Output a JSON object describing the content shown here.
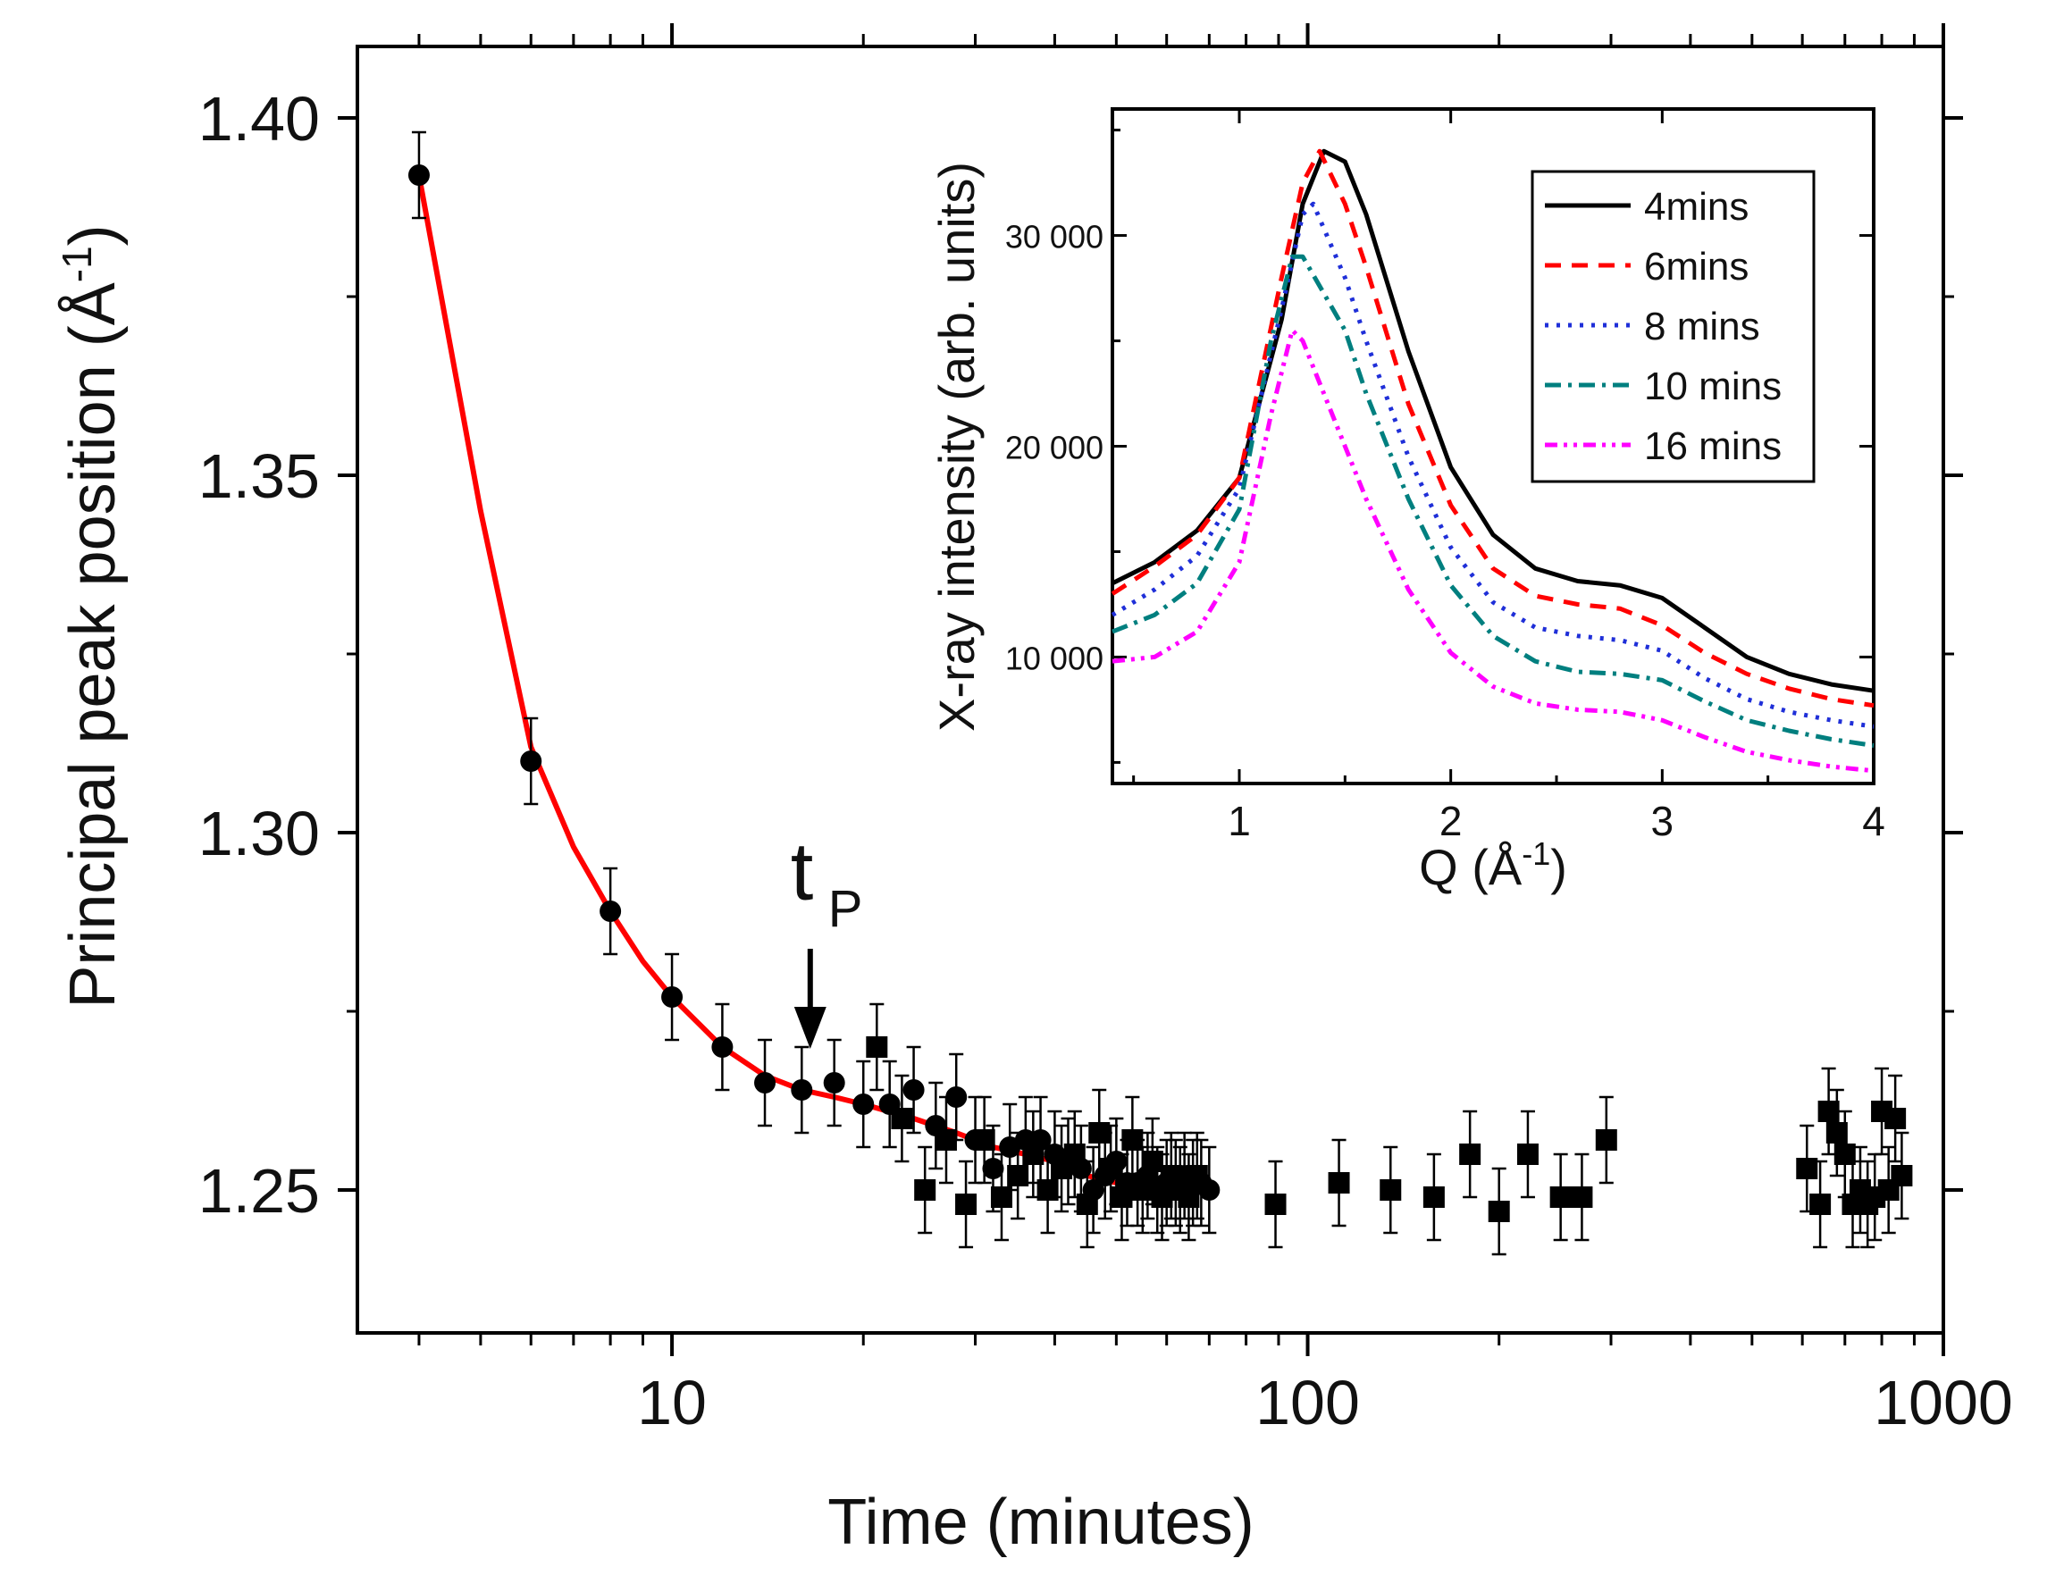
{
  "chart_data": [
    {
      "id": "main",
      "type": "scatter",
      "xscale": "log",
      "xlabel": "Time (minutes)",
      "ylabel": "Principal peak position (Å⁻¹)",
      "ylabel_base": "Principal peak position (Å",
      "ylabel_sup": "-1",
      "ylabel_close": ")",
      "xlim": [
        3.2,
        1000
      ],
      "ylim": [
        1.23,
        1.41
      ],
      "xticks": [
        10,
        100,
        1000
      ],
      "xtick_labels": [
        "10",
        "100",
        "1000"
      ],
      "yticks": [
        1.25,
        1.3,
        1.35,
        1.4
      ],
      "ytick_labels": [
        "1.25",
        "1.30",
        "1.35",
        "1.40"
      ],
      "error_bar": 0.006,
      "annotation": {
        "label": "t",
        "sub": "P",
        "x": 16.5,
        "y": 1.265
      },
      "series": [
        {
          "name": "circles",
          "marker": "circle",
          "points": [
            [
              4,
              1.392
            ],
            [
              6,
              1.31
            ],
            [
              8,
              1.289
            ],
            [
              10,
              1.277
            ],
            [
              12,
              1.27
            ],
            [
              14,
              1.265
            ],
            [
              16,
              1.264
            ],
            [
              18,
              1.265
            ],
            [
              20,
              1.262
            ],
            [
              22,
              1.262
            ],
            [
              24,
              1.264
            ],
            [
              26,
              1.259
            ],
            [
              28,
              1.263
            ],
            [
              30,
              1.257
            ],
            [
              32,
              1.253
            ],
            [
              34,
              1.256
            ],
            [
              36,
              1.257
            ],
            [
              38,
              1.257
            ],
            [
              40,
              1.255
            ],
            [
              42,
              1.254
            ],
            [
              44,
              1.253
            ],
            [
              46,
              1.25
            ],
            [
              48,
              1.252
            ],
            [
              50,
              1.254
            ],
            [
              52,
              1.251
            ],
            [
              54,
              1.251
            ],
            [
              56,
              1.252
            ],
            [
              58,
              1.25
            ],
            [
              60,
              1.251
            ],
            [
              62,
              1.251
            ],
            [
              64,
              1.252
            ],
            [
              66,
              1.251
            ],
            [
              68,
              1.251
            ],
            [
              70,
              1.25
            ]
          ]
        },
        {
          "name": "squares",
          "marker": "square",
          "points": [
            [
              21,
              1.27
            ],
            [
              23,
              1.26
            ],
            [
              25,
              1.25
            ],
            [
              27,
              1.257
            ],
            [
              29,
              1.248
            ],
            [
              31,
              1.257
            ],
            [
              33,
              1.249
            ],
            [
              35,
              1.252
            ],
            [
              37,
              1.255
            ],
            [
              39,
              1.25
            ],
            [
              41,
              1.253
            ],
            [
              43,
              1.255
            ],
            [
              45,
              1.248
            ],
            [
              47,
              1.258
            ],
            [
              49,
              1.253
            ],
            [
              51,
              1.249
            ],
            [
              53,
              1.257
            ],
            [
              55,
              1.25
            ],
            [
              57,
              1.254
            ],
            [
              59,
              1.249
            ],
            [
              61,
              1.252
            ],
            [
              63,
              1.25
            ],
            [
              65,
              1.249
            ],
            [
              67,
              1.252
            ],
            [
              89,
              1.248
            ],
            [
              112,
              1.251
            ],
            [
              135,
              1.25
            ],
            [
              158,
              1.249
            ],
            [
              180,
              1.255
            ],
            [
              200,
              1.247
            ],
            [
              222,
              1.255
            ],
            [
              250,
              1.249
            ],
            [
              270,
              1.249
            ],
            [
              295,
              1.257
            ],
            [
              610,
              1.253
            ],
            [
              640,
              1.248
            ],
            [
              660,
              1.261
            ],
            [
              680,
              1.258
            ],
            [
              700,
              1.255
            ],
            [
              720,
              1.248
            ],
            [
              740,
              1.25
            ],
            [
              760,
              1.248
            ],
            [
              780,
              1.249
            ],
            [
              800,
              1.261
            ],
            [
              820,
              1.25
            ],
            [
              840,
              1.26
            ],
            [
              860,
              1.252
            ]
          ]
        }
      ],
      "fit": {
        "name": "fit",
        "color": "#ff0000",
        "points": [
          [
            4,
            1.392
          ],
          [
            5,
            1.345
          ],
          [
            6,
            1.312
          ],
          [
            7,
            1.298
          ],
          [
            8,
            1.289
          ],
          [
            9,
            1.282
          ],
          [
            10,
            1.277
          ],
          [
            12,
            1.27
          ],
          [
            14,
            1.266
          ],
          [
            16,
            1.264
          ],
          [
            18,
            1.263
          ],
          [
            20,
            1.262
          ],
          [
            24,
            1.26
          ],
          [
            28,
            1.258
          ],
          [
            32,
            1.256
          ],
          [
            36,
            1.255
          ],
          [
            40,
            1.254
          ],
          [
            45,
            1.252
          ],
          [
            50,
            1.251
          ],
          [
            55,
            1.251
          ],
          [
            60,
            1.25
          ],
          [
            70,
            1.25
          ]
        ]
      }
    },
    {
      "id": "inset",
      "type": "line",
      "xlabel": "Q (Å⁻¹)",
      "xlabel_base": "Q (Å",
      "xlabel_sup": "-1",
      "xlabel_close": ")",
      "ylabel": "X-ray intensity (arb. units)",
      "xlim": [
        0.4,
        4
      ],
      "ylim": [
        4000,
        36000
      ],
      "xticks": [
        1,
        2,
        3,
        4
      ],
      "xtick_labels": [
        "1",
        "2",
        "3",
        "4"
      ],
      "yticks": [
        10000,
        20000,
        30000
      ],
      "ytick_labels": [
        "10 000",
        "20 000",
        "30 000"
      ],
      "legend_position": "top-right",
      "series": [
        {
          "name": "4mins",
          "color": "#000000",
          "dash": "solid",
          "points": [
            [
              0.4,
              13500
            ],
            [
              0.6,
              14500
            ],
            [
              0.8,
              16000
            ],
            [
              1.0,
              18500
            ],
            [
              1.2,
              26000
            ],
            [
              1.3,
              31500
            ],
            [
              1.4,
              34000
            ],
            [
              1.5,
              33500
            ],
            [
              1.6,
              31000
            ],
            [
              1.8,
              24500
            ],
            [
              2.0,
              19000
            ],
            [
              2.2,
              15800
            ],
            [
              2.4,
              14200
            ],
            [
              2.6,
              13600
            ],
            [
              2.8,
              13400
            ],
            [
              3.0,
              12800
            ],
            [
              3.2,
              11400
            ],
            [
              3.4,
              10000
            ],
            [
              3.6,
              9200
            ],
            [
              3.8,
              8700
            ],
            [
              4.0,
              8400
            ]
          ]
        },
        {
          "name": "6mins",
          "color": "#ff0000",
          "dash": "18,12",
          "points": [
            [
              0.4,
              13000
            ],
            [
              0.6,
              14300
            ],
            [
              0.8,
              15800
            ],
            [
              1.0,
              18500
            ],
            [
              1.2,
              28000
            ],
            [
              1.3,
              32500
            ],
            [
              1.38,
              34000
            ],
            [
              1.5,
              31500
            ],
            [
              1.6,
              28500
            ],
            [
              1.8,
              22000
            ],
            [
              2.0,
              17200
            ],
            [
              2.2,
              14200
            ],
            [
              2.4,
              12900
            ],
            [
              2.6,
              12500
            ],
            [
              2.8,
              12300
            ],
            [
              3.0,
              11500
            ],
            [
              3.2,
              10200
            ],
            [
              3.4,
              9200
            ],
            [
              3.6,
              8500
            ],
            [
              3.8,
              8000
            ],
            [
              4.0,
              7700
            ]
          ]
        },
        {
          "name": "8 mins",
          "color": "#1f2fd8",
          "dash": "4,9",
          "points": [
            [
              0.4,
              12000
            ],
            [
              0.6,
              13200
            ],
            [
              0.8,
              14800
            ],
            [
              1.0,
              18000
            ],
            [
              1.2,
              26500
            ],
            [
              1.3,
              31000
            ],
            [
              1.35,
              31500
            ],
            [
              1.5,
              28000
            ],
            [
              1.6,
              25000
            ],
            [
              1.8,
              19500
            ],
            [
              2.0,
              15200
            ],
            [
              2.2,
              12600
            ],
            [
              2.4,
              11400
            ],
            [
              2.6,
              11000
            ],
            [
              2.8,
              10800
            ],
            [
              3.0,
              10300
            ],
            [
              3.2,
              9000
            ],
            [
              3.4,
              8000
            ],
            [
              3.6,
              7400
            ],
            [
              3.8,
              7000
            ],
            [
              4.0,
              6700
            ]
          ]
        },
        {
          "name": "10 mins",
          "color": "#007f7f",
          "dash": "18,8,4,8",
          "points": [
            [
              0.4,
              11200
            ],
            [
              0.6,
              12000
            ],
            [
              0.8,
              13500
            ],
            [
              1.0,
              17000
            ],
            [
              1.15,
              25000
            ],
            [
              1.25,
              29000
            ],
            [
              1.3,
              29000
            ],
            [
              1.5,
              25500
            ],
            [
              1.6,
              22500
            ],
            [
              1.8,
              17500
            ],
            [
              2.0,
              13400
            ],
            [
              2.2,
              11000
            ],
            [
              2.4,
              9800
            ],
            [
              2.6,
              9300
            ],
            [
              2.8,
              9200
            ],
            [
              3.0,
              8900
            ],
            [
              3.2,
              7900
            ],
            [
              3.4,
              7000
            ],
            [
              3.6,
              6500
            ],
            [
              3.8,
              6100
            ],
            [
              4.0,
              5800
            ]
          ]
        },
        {
          "name": "16 mins",
          "color": "#ff00ff",
          "dash": "14,7,4,7,4,7",
          "points": [
            [
              0.4,
              9800
            ],
            [
              0.6,
              10000
            ],
            [
              0.8,
              11200
            ],
            [
              1.0,
              14500
            ],
            [
              1.15,
              21500
            ],
            [
              1.25,
              25500
            ],
            [
              1.3,
              25000
            ],
            [
              1.5,
              20000
            ],
            [
              1.6,
              17500
            ],
            [
              1.8,
              13200
            ],
            [
              2.0,
              10200
            ],
            [
              2.2,
              8600
            ],
            [
              2.4,
              7800
            ],
            [
              2.6,
              7500
            ],
            [
              2.8,
              7400
            ],
            [
              3.0,
              7000
            ],
            [
              3.2,
              6200
            ],
            [
              3.4,
              5500
            ],
            [
              3.6,
              5100
            ],
            [
              3.8,
              4800
            ],
            [
              4.0,
              4600
            ]
          ]
        }
      ]
    }
  ]
}
